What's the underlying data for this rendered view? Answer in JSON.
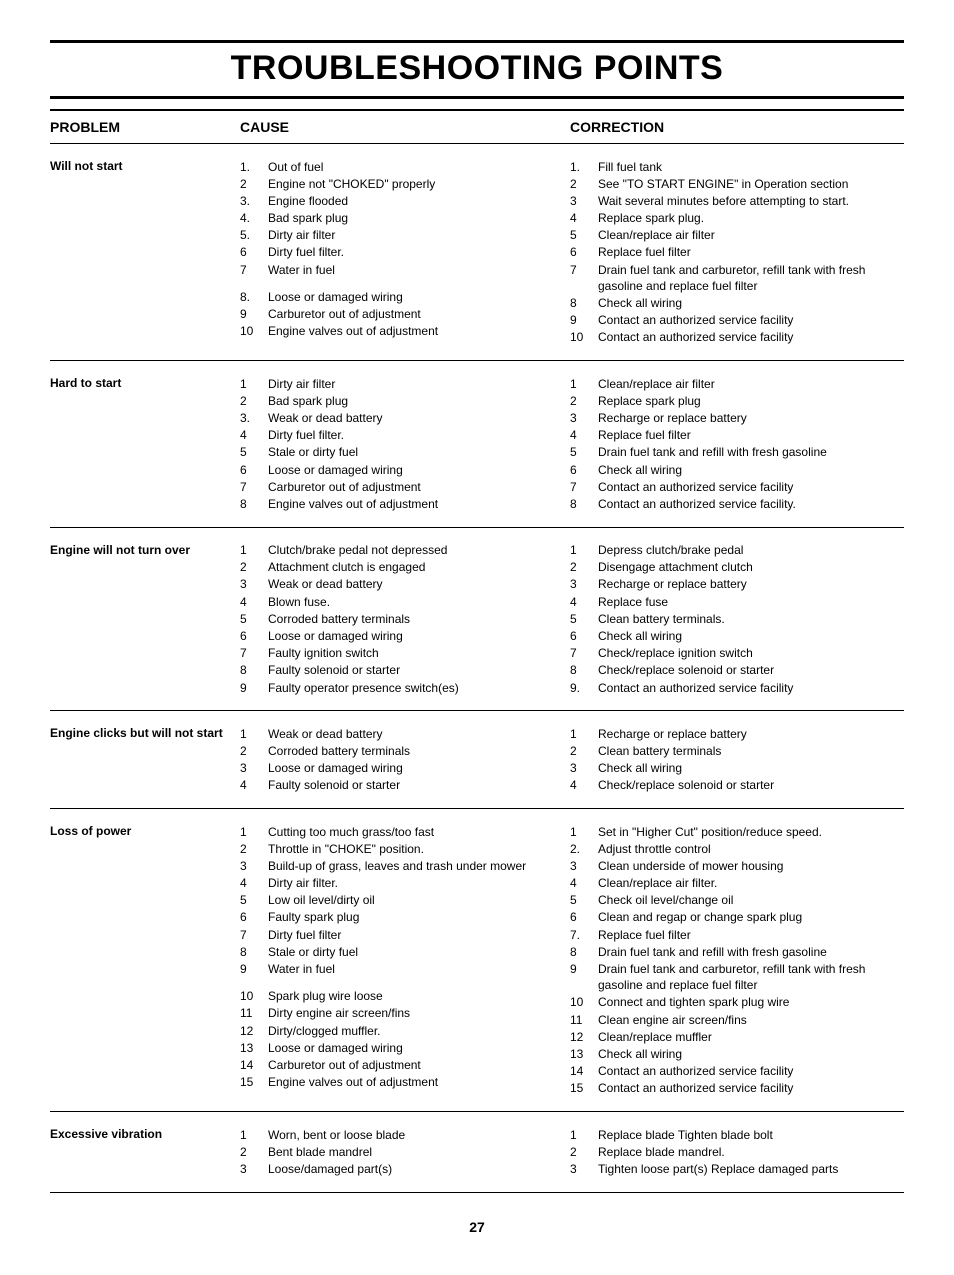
{
  "title": "TROUBLESHOOTING POINTS",
  "headers": {
    "problem": "PROBLEM",
    "cause": "CAUSE",
    "correction": "CORRECTION"
  },
  "page_number": "27",
  "rows": [
    {
      "problem": "Will not start",
      "causes": [
        {
          "n": "1.",
          "t": "Out of fuel"
        },
        {
          "n": "2",
          "t": "Engine not \"CHOKED\" properly"
        },
        {
          "n": "3.",
          "t": "Engine flooded"
        },
        {
          "n": "4.",
          "t": "Bad spark plug"
        },
        {
          "n": "5.",
          "t": "Dirty air filter"
        },
        {
          "n": "6",
          "t": "Dirty fuel filter."
        },
        {
          "n": "7",
          "t": "Water in fuel"
        },
        {
          "n": "8.",
          "t": "Loose or damaged wiring",
          "gap": true
        },
        {
          "n": "9",
          "t": "Carburetor out of adjustment"
        },
        {
          "n": "10",
          "t": "Engine valves out of adjustment"
        }
      ],
      "corrections": [
        {
          "n": "1.",
          "t": "Fill fuel tank"
        },
        {
          "n": "2",
          "t": "See \"TO START ENGINE\" in Operation section"
        },
        {
          "n": "3",
          "t": "Wait several minutes before attempting to start."
        },
        {
          "n": "4",
          "t": "Replace spark plug."
        },
        {
          "n": "5",
          "t": "Clean/replace air filter"
        },
        {
          "n": "6",
          "t": "Replace fuel filter"
        },
        {
          "n": "7",
          "t": "Drain fuel tank and carburetor, refill tank with fresh gasoline and replace fuel filter"
        },
        {
          "n": "8",
          "t": "Check all wiring"
        },
        {
          "n": "9",
          "t": "Contact an authorized service facility"
        },
        {
          "n": "10",
          "t": "Contact an authorized service facility"
        }
      ]
    },
    {
      "problem": "Hard to start",
      "causes": [
        {
          "n": "1",
          "t": "Dirty air filter"
        },
        {
          "n": "2",
          "t": "Bad spark plug"
        },
        {
          "n": "3.",
          "t": "Weak or dead battery"
        },
        {
          "n": "4",
          "t": "Dirty fuel filter."
        },
        {
          "n": "5",
          "t": "Stale or dirty fuel"
        },
        {
          "n": "6",
          "t": "Loose or damaged wiring"
        },
        {
          "n": "7",
          "t": "Carburetor out of adjustment"
        },
        {
          "n": "8",
          "t": "Engine valves out of adjustment"
        }
      ],
      "corrections": [
        {
          "n": "1",
          "t": "Clean/replace air filter"
        },
        {
          "n": "2",
          "t": "Replace spark plug"
        },
        {
          "n": "3",
          "t": "Recharge or replace battery"
        },
        {
          "n": "4",
          "t": "Replace fuel filter"
        },
        {
          "n": "5",
          "t": "Drain fuel tank and refill with fresh gasoline"
        },
        {
          "n": "6",
          "t": "Check all wiring"
        },
        {
          "n": "7",
          "t": "Contact an authorized service facility"
        },
        {
          "n": "8",
          "t": "Contact an authorized service facility."
        }
      ]
    },
    {
      "problem": "Engine will not turn over",
      "causes": [
        {
          "n": "1",
          "t": "Clutch/brake pedal not depressed"
        },
        {
          "n": "2",
          "t": "Attachment clutch is engaged"
        },
        {
          "n": "3",
          "t": "Weak or dead battery"
        },
        {
          "n": "4",
          "t": "Blown fuse."
        },
        {
          "n": "5",
          "t": "Corroded battery terminals"
        },
        {
          "n": "6",
          "t": "Loose or damaged wiring"
        },
        {
          "n": "7",
          "t": "Faulty ignition switch"
        },
        {
          "n": "8",
          "t": "Faulty solenoid or starter"
        },
        {
          "n": "9",
          "t": "Faulty operator presence switch(es)"
        }
      ],
      "corrections": [
        {
          "n": "1",
          "t": "Depress clutch/brake pedal"
        },
        {
          "n": "2",
          "t": "Disengage attachment clutch"
        },
        {
          "n": "3",
          "t": "Recharge or replace battery"
        },
        {
          "n": "4",
          "t": "Replace fuse"
        },
        {
          "n": "5",
          "t": "Clean battery terminals."
        },
        {
          "n": "6",
          "t": "Check all wiring"
        },
        {
          "n": "7",
          "t": "Check/replace ignition switch"
        },
        {
          "n": "8",
          "t": "Check/replace solenoid or starter"
        },
        {
          "n": "9.",
          "t": "Contact an authorized service facility"
        }
      ]
    },
    {
      "problem": "Engine clicks but will not start",
      "causes": [
        {
          "n": "1",
          "t": "Weak or dead battery"
        },
        {
          "n": "2",
          "t": "Corroded battery terminals"
        },
        {
          "n": "3",
          "t": "Loose or damaged wiring"
        },
        {
          "n": "4",
          "t": "Faulty solenoid or starter"
        }
      ],
      "corrections": [
        {
          "n": "1",
          "t": "Recharge or replace battery"
        },
        {
          "n": "2",
          "t": "Clean battery terminals"
        },
        {
          "n": "3",
          "t": "Check all wiring"
        },
        {
          "n": "4",
          "t": "Check/replace solenoid or starter"
        }
      ]
    },
    {
      "problem": "Loss of power",
      "causes": [
        {
          "n": "1",
          "t": "Cutting too much grass/too fast"
        },
        {
          "n": "2",
          "t": "Throttle in \"CHOKE\" position."
        },
        {
          "n": "3",
          "t": "Build-up of grass, leaves and trash under mower"
        },
        {
          "n": "4",
          "t": "Dirty air filter."
        },
        {
          "n": "5",
          "t": "Low oil level/dirty oil"
        },
        {
          "n": "6",
          "t": "Faulty spark plug"
        },
        {
          "n": "7",
          "t": "Dirty fuel filter"
        },
        {
          "n": "8",
          "t": "Stale or dirty fuel"
        },
        {
          "n": "9",
          "t": "Water in fuel"
        },
        {
          "n": "10",
          "t": "Spark plug wire loose",
          "gap": true
        },
        {
          "n": "11",
          "t": "Dirty engine air screen/fins"
        },
        {
          "n": "12",
          "t": "Dirty/clogged muffler."
        },
        {
          "n": "13",
          "t": "Loose or damaged wiring"
        },
        {
          "n": "14",
          "t": "Carburetor out of adjustment"
        },
        {
          "n": "15",
          "t": "Engine valves out of adjustment"
        }
      ],
      "corrections": [
        {
          "n": "1",
          "t": "Set in \"Higher Cut\" position/reduce speed."
        },
        {
          "n": "2.",
          "t": "Adjust throttle control"
        },
        {
          "n": "3",
          "t": "Clean underside of mower housing"
        },
        {
          "n": "4",
          "t": "Clean/replace air filter."
        },
        {
          "n": "5",
          "t": "Check oil level/change oil"
        },
        {
          "n": "6",
          "t": "Clean and regap or change spark plug"
        },
        {
          "n": "7.",
          "t": "Replace fuel filter"
        },
        {
          "n": "8",
          "t": "Drain fuel tank and refill with fresh gasoline"
        },
        {
          "n": "9",
          "t": "Drain fuel tank and carburetor, refill tank with fresh gasoline and replace fuel filter"
        },
        {
          "n": "10",
          "t": "Connect and tighten spark plug wire"
        },
        {
          "n": "11",
          "t": "Clean engine air screen/fins"
        },
        {
          "n": "12",
          "t": "Clean/replace muffler"
        },
        {
          "n": "13",
          "t": "Check all wiring"
        },
        {
          "n": "14",
          "t": "Contact an authorized service facility"
        },
        {
          "n": "15",
          "t": "Contact an authorized service facility"
        }
      ]
    },
    {
      "problem": "Excessive vibration",
      "causes": [
        {
          "n": "1",
          "t": "Worn, bent or loose blade"
        },
        {
          "n": "2",
          "t": "Bent blade mandrel"
        },
        {
          "n": "3",
          "t": "Loose/damaged part(s)"
        }
      ],
      "corrections": [
        {
          "n": "1",
          "t": "Replace blade   Tighten blade bolt"
        },
        {
          "n": "2",
          "t": "Replace blade mandrel."
        },
        {
          "n": "3",
          "t": "Tighten loose part(s)   Replace damaged parts"
        }
      ]
    }
  ]
}
